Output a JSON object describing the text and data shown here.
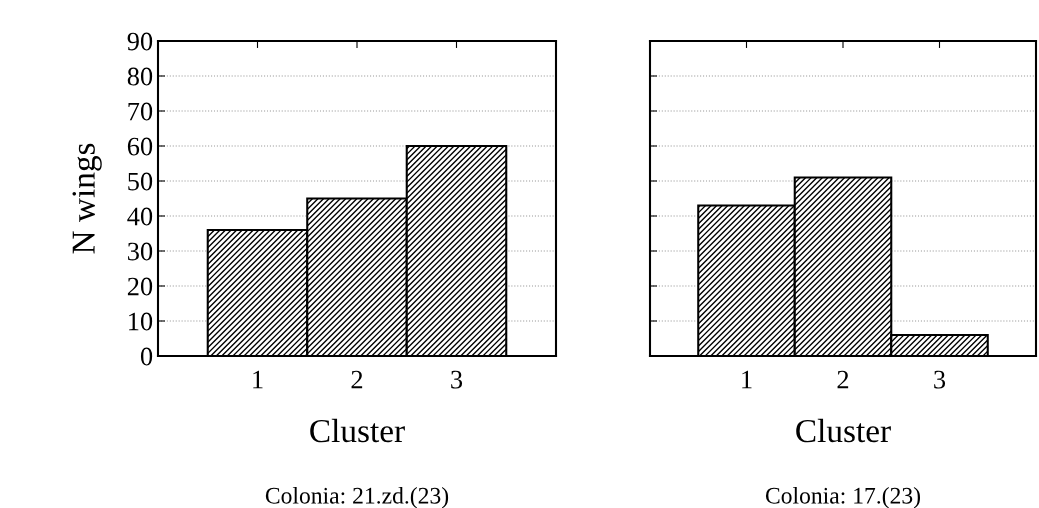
{
  "chart_data": [
    {
      "type": "bar",
      "categories": [
        "1",
        "2",
        "3"
      ],
      "values": [
        36,
        45,
        60
      ],
      "color": "#000000",
      "xlabel": "Cluster",
      "ylabel": "N wings",
      "annotations": [
        "Colonia: 21.zd.(23)"
      ],
      "ylim": [
        0,
        90
      ],
      "yticks": [
        0,
        10,
        20,
        30,
        40,
        50,
        60,
        70,
        80,
        90
      ],
      "grid": "y"
    },
    {
      "type": "bar",
      "categories": [
        "1",
        "2",
        "3"
      ],
      "values": [
        43,
        51,
        6
      ],
      "color": "#000000",
      "xlabel": "Cluster",
      "annotations": [
        "Colonia: 17.(23)"
      ],
      "ylim": [
        0,
        90
      ],
      "yticks": [
        0,
        10,
        20,
        30,
        40,
        50,
        60,
        70,
        80,
        90
      ],
      "grid": "y",
      "tick_labels": "x"
    }
  ]
}
